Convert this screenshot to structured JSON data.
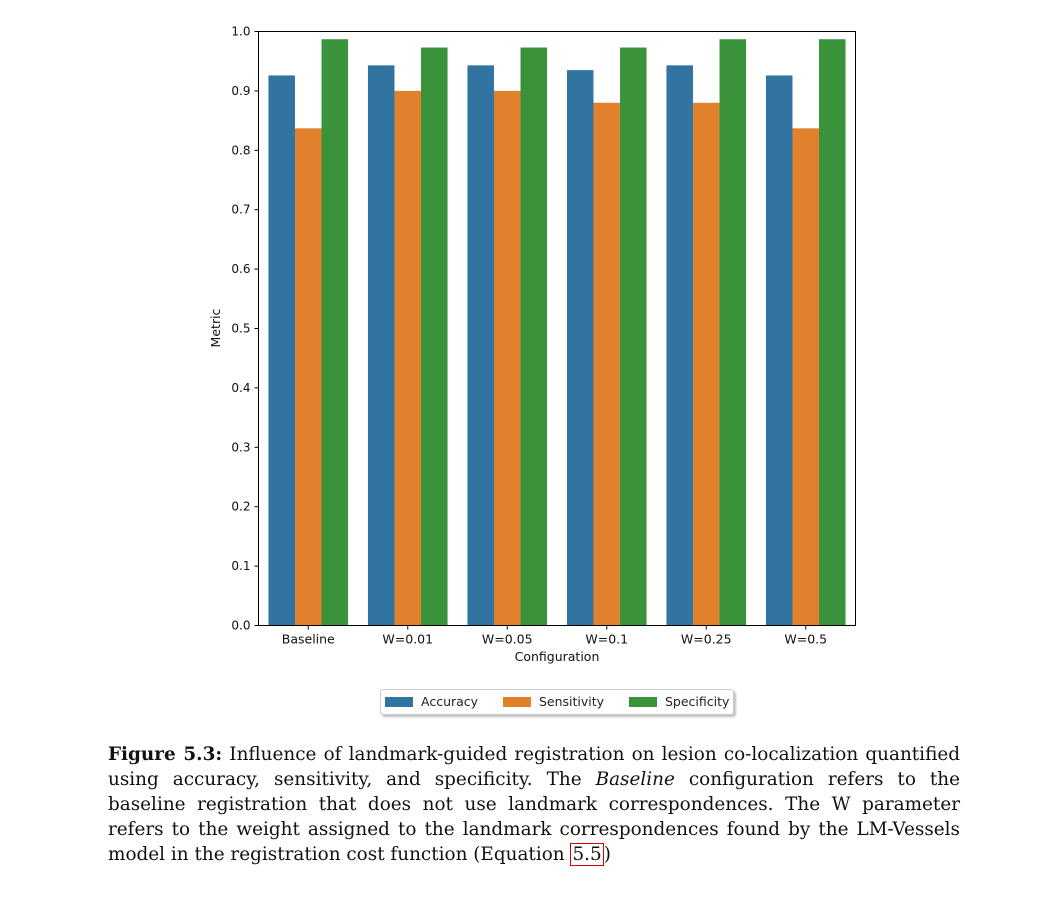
{
  "chart_data": {
    "type": "bar",
    "xlabel": "Configuration",
    "ylabel": "Metric",
    "ylim": [
      0,
      1.0
    ],
    "yticks": [
      "0.0",
      "0.1",
      "0.2",
      "0.3",
      "0.4",
      "0.5",
      "0.6",
      "0.7",
      "0.8",
      "0.9",
      "1.0"
    ],
    "categories": [
      "Baseline",
      "W=0.01",
      "W=0.05",
      "W=0.1",
      "W=0.25",
      "W=0.5"
    ],
    "series": [
      {
        "name": "Accuracy",
        "color": "#3274a1",
        "values": [
          0.926,
          0.943,
          0.943,
          0.935,
          0.943,
          0.926
        ]
      },
      {
        "name": "Sensitivity",
        "color": "#e1812c",
        "values": [
          0.837,
          0.9,
          0.9,
          0.88,
          0.88,
          0.837
        ]
      },
      {
        "name": "Specificity",
        "color": "#3a923a",
        "values": [
          0.987,
          0.973,
          0.973,
          0.973,
          0.987,
          0.987
        ]
      }
    ],
    "legend_position": "bottom-center",
    "grid": false
  },
  "caption": {
    "label": "Figure 5.3:",
    "text_1": " Influence of landmark-guided registration on lesion co-localization quantified using accuracy, sensitivity, and specificity. The ",
    "italic": "Baseline",
    "text_2": " configuration refers to the baseline registration that does not use landmark correspondences. The W parameter refers to the weight assigned to the landmark correspondences found by the LM-Vessels model in the registration cost function (Equation ",
    "ref": "5.5",
    "text_3": ")"
  }
}
